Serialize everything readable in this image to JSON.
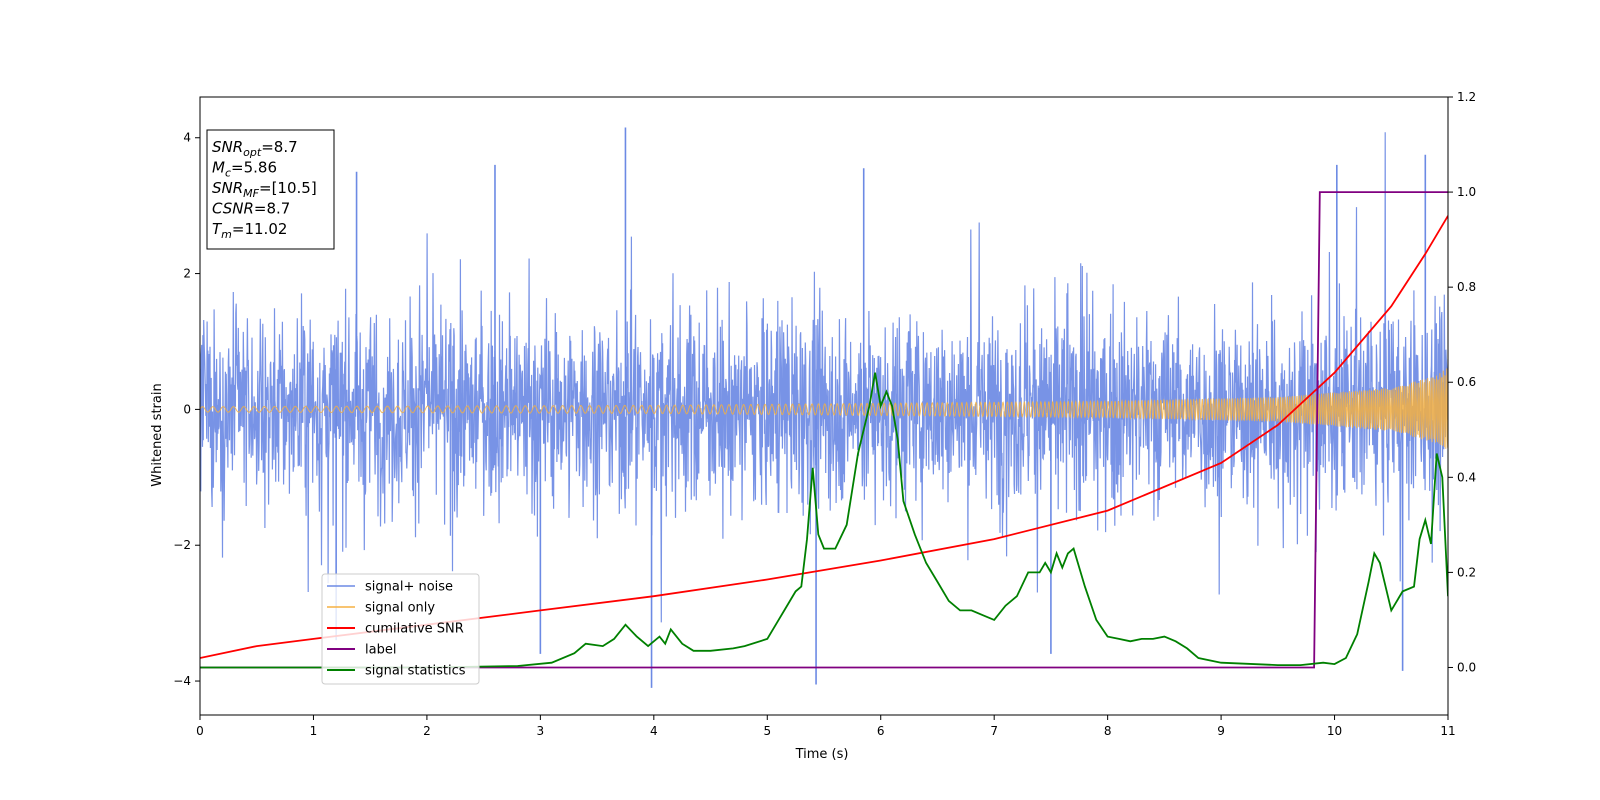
{
  "chart_data": {
    "type": "line",
    "xlabel": "Time (s)",
    "ylabel": "Whitened strain",
    "xlim": [
      0,
      11
    ],
    "ylim": [
      -4.5,
      4.6
    ],
    "y2lim": [
      -0.1,
      1.2
    ],
    "x_ticks": [
      "0",
      "1",
      "2",
      "3",
      "4",
      "5",
      "6",
      "7",
      "8",
      "9",
      "10",
      "11"
    ],
    "y_ticks": [
      "4",
      "2",
      "0",
      "−2",
      "−4"
    ],
    "y2_ticks": [
      "1.2",
      "1.0",
      "0.8",
      "0.6",
      "0.4",
      "0.2",
      "0.0"
    ],
    "legend_position": "lower-left",
    "info_box": [
      {
        "sym": "SNR",
        "sub": "opt",
        "value": "=8.7"
      },
      {
        "sym": "M",
        "sub": "c",
        "value": "=5.86"
      },
      {
        "sym": "SNR",
        "sub": "MF",
        "value": "=[10.5]"
      },
      {
        "sym": "CSNR",
        "sub": "",
        "value": "=8.7"
      },
      {
        "sym": "T",
        "sub": "m",
        "value": "=11.02"
      }
    ],
    "series": [
      {
        "name": "signal+ noise",
        "color": "#6c8ae4",
        "axis": "left",
        "kind": "noise",
        "band": 1.6,
        "spike_max": 4.2,
        "spikes": [
          [
            3.75,
            4.15
          ],
          [
            10.8,
            3.75
          ],
          [
            10.02,
            3.6
          ],
          [
            1.38,
            3.5
          ],
          [
            2.6,
            3.6
          ],
          [
            5.85,
            3.55
          ],
          [
            3.98,
            -4.1
          ],
          [
            5.43,
            -4.05
          ],
          [
            10.6,
            -3.85
          ],
          [
            3.0,
            -3.6
          ],
          [
            1.2,
            -3.4
          ],
          [
            7.5,
            -3.6
          ]
        ]
      },
      {
        "name": "signal only",
        "color": "#f5b041",
        "axis": "left",
        "kind": "chirp",
        "amp_x": [
          0,
          4,
          8,
          9.5,
          10.5,
          10.9,
          11
        ],
        "amp_y": [
          0.04,
          0.06,
          0.12,
          0.18,
          0.32,
          0.5,
          0.62
        ]
      },
      {
        "name": "cumilative SNR",
        "color": "#ff0000",
        "axis": "right",
        "x": [
          0,
          0.5,
          1,
          2,
          3,
          4,
          5,
          6,
          7,
          8,
          9,
          9.5,
          10,
          10.5,
          10.8,
          11
        ],
        "y": [
          0.02,
          0.045,
          0.06,
          0.09,
          0.12,
          0.15,
          0.185,
          0.225,
          0.27,
          0.33,
          0.43,
          0.51,
          0.62,
          0.76,
          0.87,
          0.95
        ]
      },
      {
        "name": "label",
        "color": "#800080",
        "axis": "right",
        "x": [
          0,
          9.82,
          9.87,
          11
        ],
        "y": [
          0,
          0,
          1,
          1
        ]
      },
      {
        "name": "signal statistics",
        "color": "#008000",
        "axis": "right",
        "x": [
          0,
          1,
          2,
          2.8,
          3.1,
          3.3,
          3.4,
          3.55,
          3.65,
          3.75,
          3.85,
          3.95,
          4.05,
          4.1,
          4.15,
          4.25,
          4.35,
          4.5,
          4.7,
          4.8,
          5.0,
          5.1,
          5.15,
          5.25,
          5.3,
          5.35,
          5.4,
          5.45,
          5.5,
          5.6,
          5.7,
          5.8,
          5.9,
          5.95,
          6.0,
          6.05,
          6.1,
          6.15,
          6.2,
          6.3,
          6.4,
          6.5,
          6.6,
          6.7,
          6.8,
          6.9,
          7.0,
          7.1,
          7.2,
          7.3,
          7.4,
          7.45,
          7.5,
          7.55,
          7.6,
          7.65,
          7.7,
          7.8,
          7.9,
          8.0,
          8.1,
          8.2,
          8.3,
          8.4,
          8.5,
          8.6,
          8.7,
          8.8,
          9.0,
          9.5,
          9.7,
          9.9,
          10.0,
          10.1,
          10.2,
          10.3,
          10.35,
          10.4,
          10.5,
          10.6,
          10.7,
          10.75,
          10.8,
          10.85,
          10.9,
          10.95,
          11.0
        ],
        "y": [
          0,
          0,
          0,
          0.003,
          0.01,
          0.03,
          0.05,
          0.045,
          0.06,
          0.09,
          0.065,
          0.045,
          0.065,
          0.05,
          0.08,
          0.05,
          0.035,
          0.035,
          0.04,
          0.045,
          0.06,
          0.1,
          0.12,
          0.16,
          0.17,
          0.27,
          0.42,
          0.28,
          0.25,
          0.25,
          0.3,
          0.45,
          0.55,
          0.62,
          0.55,
          0.58,
          0.55,
          0.48,
          0.35,
          0.28,
          0.22,
          0.18,
          0.14,
          0.12,
          0.12,
          0.11,
          0.1,
          0.13,
          0.15,
          0.2,
          0.2,
          0.22,
          0.2,
          0.24,
          0.21,
          0.24,
          0.25,
          0.17,
          0.1,
          0.065,
          0.06,
          0.055,
          0.06,
          0.06,
          0.065,
          0.055,
          0.04,
          0.02,
          0.01,
          0.005,
          0.005,
          0.01,
          0.007,
          0.02,
          0.07,
          0.18,
          0.24,
          0.22,
          0.12,
          0.16,
          0.17,
          0.27,
          0.31,
          0.26,
          0.45,
          0.4,
          0.15
        ]
      }
    ]
  }
}
